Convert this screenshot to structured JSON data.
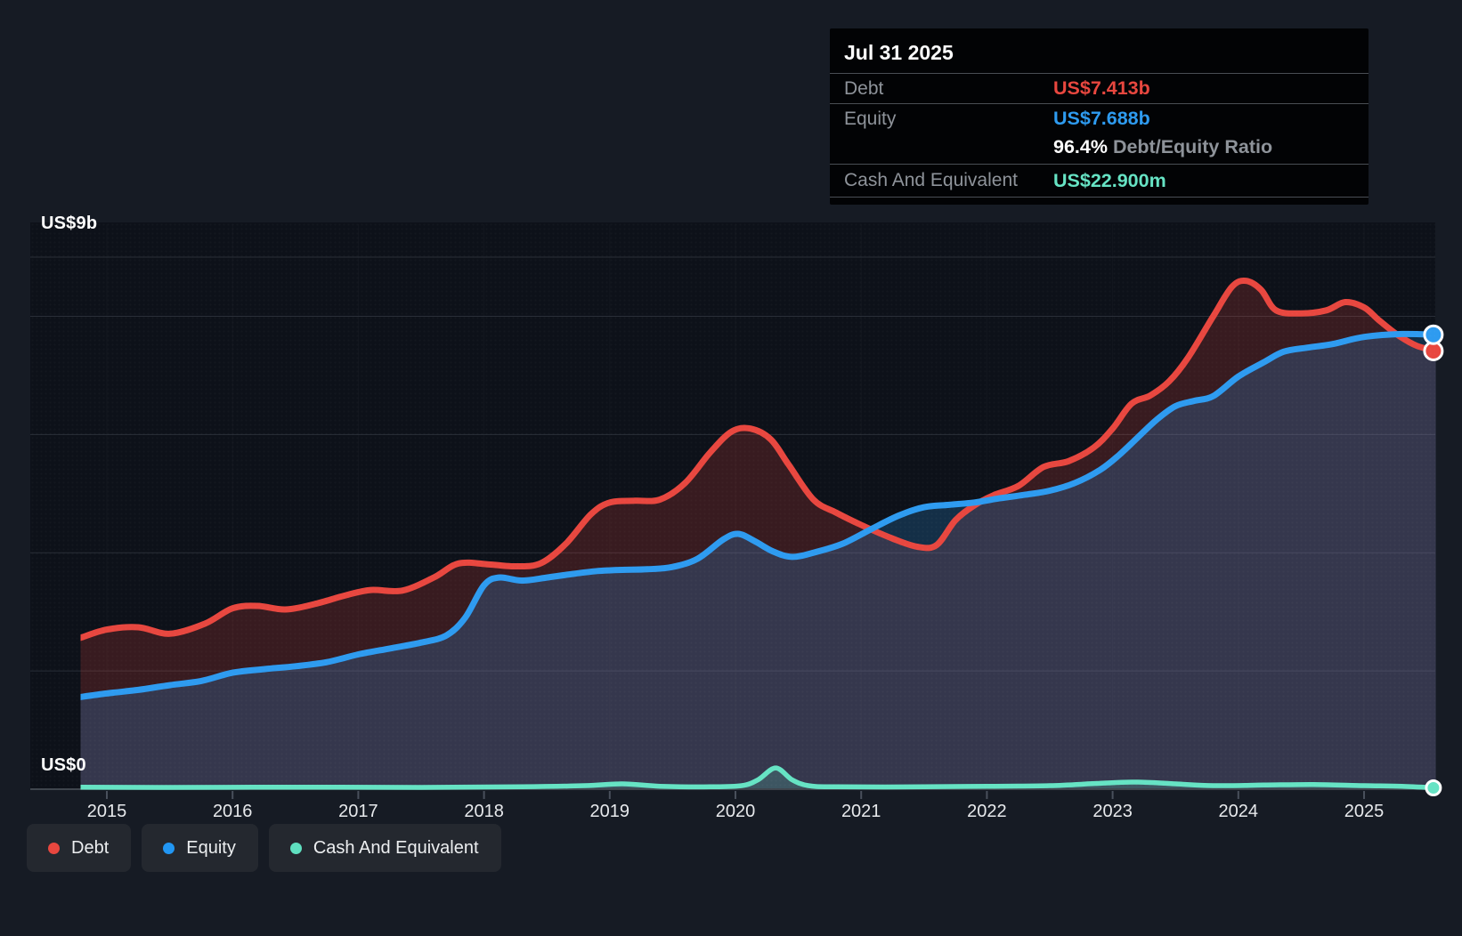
{
  "tooltip": {
    "title": "Jul 31 2025",
    "debt_label": "Debt",
    "debt_value": "US$7.413b",
    "equity_label": "Equity",
    "equity_value": "US$7.688b",
    "ratio_value": "96.4%",
    "ratio_label": " Debt/Equity Ratio",
    "cash_label": "Cash And Equivalent",
    "cash_value": "US$22.900m"
  },
  "axis": {
    "y_top_label": "US$9b",
    "y_zero_label": "US$0"
  },
  "legend": [
    {
      "id": "debt",
      "label": "Debt",
      "color": "#e8473f"
    },
    {
      "id": "equity",
      "label": "Equity",
      "color": "#2196f3"
    },
    {
      "id": "cash",
      "label": "Cash And Equivalent",
      "color": "#5fe0c0"
    }
  ],
  "colors": {
    "page_bg": "#161b24",
    "plot_bg": "#0d1119",
    "grid": "#2a2f38",
    "axis_line": "#3f454d",
    "tick": "#49505c",
    "debt": "#e8473f",
    "equity": "#2e9bf0",
    "cash": "#66e3c4",
    "debt_fill": "rgba(232,68,60,0.20)",
    "equity_fill": "rgba(46,155,236,0.22)",
    "cash_fill": "rgba(102,227,196,0.18)"
  },
  "chart_data": {
    "type": "area",
    "title": "Debt, Equity and Cash history (US$ billions)",
    "x_ticks": [
      "2015",
      "2016",
      "2017",
      "2018",
      "2019",
      "2020",
      "2021",
      "2022",
      "2023",
      "2024",
      "2025"
    ],
    "x_range": [
      2014.79,
      2025.58
    ],
    "ylim": [
      0,
      9
    ],
    "y_gridlines_billions": [
      9,
      8,
      6,
      4,
      2,
      0
    ],
    "y_top_label": "US$9b",
    "y_zero_label": "US$0",
    "legend_position": "bottom-left",
    "end_date": "Jul 31 2025",
    "end_values_billions": {
      "debt": 7.413,
      "equity": 7.688,
      "cash": 0.0229
    },
    "series": [
      {
        "name": "Debt",
        "unit": "US$ billions",
        "points": [
          [
            2014.79,
            2.56
          ],
          [
            2015.0,
            2.7
          ],
          [
            2015.25,
            2.74
          ],
          [
            2015.5,
            2.63
          ],
          [
            2015.78,
            2.8
          ],
          [
            2016.0,
            3.06
          ],
          [
            2016.2,
            3.1
          ],
          [
            2016.42,
            3.04
          ],
          [
            2016.65,
            3.13
          ],
          [
            2016.9,
            3.28
          ],
          [
            2017.1,
            3.37
          ],
          [
            2017.35,
            3.36
          ],
          [
            2017.6,
            3.58
          ],
          [
            2017.8,
            3.82
          ],
          [
            2018.05,
            3.8
          ],
          [
            2018.25,
            3.77
          ],
          [
            2018.45,
            3.82
          ],
          [
            2018.65,
            4.15
          ],
          [
            2018.85,
            4.65
          ],
          [
            2019.0,
            4.85
          ],
          [
            2019.2,
            4.88
          ],
          [
            2019.4,
            4.9
          ],
          [
            2019.6,
            5.18
          ],
          [
            2019.8,
            5.7
          ],
          [
            2019.97,
            6.05
          ],
          [
            2020.12,
            6.1
          ],
          [
            2020.28,
            5.92
          ],
          [
            2020.42,
            5.5
          ],
          [
            2020.62,
            4.9
          ],
          [
            2020.8,
            4.68
          ],
          [
            2021.0,
            4.47
          ],
          [
            2021.25,
            4.24
          ],
          [
            2021.45,
            4.1
          ],
          [
            2021.6,
            4.13
          ],
          [
            2021.75,
            4.55
          ],
          [
            2021.9,
            4.8
          ],
          [
            2022.05,
            4.97
          ],
          [
            2022.25,
            5.13
          ],
          [
            2022.45,
            5.45
          ],
          [
            2022.65,
            5.55
          ],
          [
            2022.85,
            5.78
          ],
          [
            2023.0,
            6.1
          ],
          [
            2023.15,
            6.52
          ],
          [
            2023.3,
            6.66
          ],
          [
            2023.45,
            6.9
          ],
          [
            2023.6,
            7.3
          ],
          [
            2023.8,
            8.0
          ],
          [
            2023.95,
            8.5
          ],
          [
            2024.06,
            8.6
          ],
          [
            2024.18,
            8.45
          ],
          [
            2024.3,
            8.1
          ],
          [
            2024.5,
            8.05
          ],
          [
            2024.7,
            8.1
          ],
          [
            2024.85,
            8.24
          ],
          [
            2025.0,
            8.15
          ],
          [
            2025.12,
            7.93
          ],
          [
            2025.27,
            7.68
          ],
          [
            2025.42,
            7.5
          ],
          [
            2025.58,
            7.413
          ]
        ]
      },
      {
        "name": "Equity",
        "unit": "US$ billions",
        "points": [
          [
            2014.79,
            1.56
          ],
          [
            2015.0,
            1.62
          ],
          [
            2015.25,
            1.68
          ],
          [
            2015.5,
            1.76
          ],
          [
            2015.75,
            1.83
          ],
          [
            2016.0,
            1.97
          ],
          [
            2016.25,
            2.03
          ],
          [
            2016.5,
            2.08
          ],
          [
            2016.75,
            2.15
          ],
          [
            2017.0,
            2.28
          ],
          [
            2017.25,
            2.38
          ],
          [
            2017.5,
            2.48
          ],
          [
            2017.7,
            2.6
          ],
          [
            2017.85,
            2.9
          ],
          [
            2018.0,
            3.45
          ],
          [
            2018.12,
            3.58
          ],
          [
            2018.3,
            3.53
          ],
          [
            2018.5,
            3.58
          ],
          [
            2018.7,
            3.64
          ],
          [
            2018.9,
            3.69
          ],
          [
            2019.1,
            3.71
          ],
          [
            2019.3,
            3.72
          ],
          [
            2019.5,
            3.76
          ],
          [
            2019.7,
            3.9
          ],
          [
            2019.9,
            4.22
          ],
          [
            2020.02,
            4.32
          ],
          [
            2020.15,
            4.2
          ],
          [
            2020.3,
            4.02
          ],
          [
            2020.45,
            3.93
          ],
          [
            2020.62,
            4.0
          ],
          [
            2020.85,
            4.15
          ],
          [
            2021.08,
            4.4
          ],
          [
            2021.3,
            4.63
          ],
          [
            2021.5,
            4.77
          ],
          [
            2021.7,
            4.81
          ],
          [
            2021.9,
            4.85
          ],
          [
            2022.1,
            4.92
          ],
          [
            2022.3,
            4.98
          ],
          [
            2022.5,
            5.05
          ],
          [
            2022.7,
            5.18
          ],
          [
            2022.9,
            5.4
          ],
          [
            2023.05,
            5.65
          ],
          [
            2023.2,
            5.95
          ],
          [
            2023.35,
            6.25
          ],
          [
            2023.5,
            6.48
          ],
          [
            2023.65,
            6.57
          ],
          [
            2023.8,
            6.65
          ],
          [
            2024.0,
            6.98
          ],
          [
            2024.2,
            7.22
          ],
          [
            2024.36,
            7.4
          ],
          [
            2024.55,
            7.47
          ],
          [
            2024.75,
            7.53
          ],
          [
            2025.0,
            7.65
          ],
          [
            2025.3,
            7.7
          ],
          [
            2025.58,
            7.688
          ]
        ]
      },
      {
        "name": "Cash And Equivalent",
        "unit": "US$ billions",
        "points": [
          [
            2014.79,
            0.035
          ],
          [
            2015.5,
            0.03
          ],
          [
            2016.5,
            0.035
          ],
          [
            2017.5,
            0.03
          ],
          [
            2018.3,
            0.04
          ],
          [
            2018.8,
            0.06
          ],
          [
            2019.1,
            0.09
          ],
          [
            2019.4,
            0.05
          ],
          [
            2019.8,
            0.04
          ],
          [
            2020.05,
            0.06
          ],
          [
            2020.18,
            0.16
          ],
          [
            2020.32,
            0.36
          ],
          [
            2020.45,
            0.16
          ],
          [
            2020.58,
            0.06
          ],
          [
            2020.8,
            0.04
          ],
          [
            2021.5,
            0.04
          ],
          [
            2022.0,
            0.05
          ],
          [
            2022.5,
            0.06
          ],
          [
            2022.9,
            0.1
          ],
          [
            2023.2,
            0.12
          ],
          [
            2023.5,
            0.09
          ],
          [
            2023.8,
            0.06
          ],
          [
            2024.2,
            0.07
          ],
          [
            2024.6,
            0.08
          ],
          [
            2025.0,
            0.06
          ],
          [
            2025.3,
            0.05
          ],
          [
            2025.58,
            0.023
          ]
        ]
      }
    ]
  }
}
